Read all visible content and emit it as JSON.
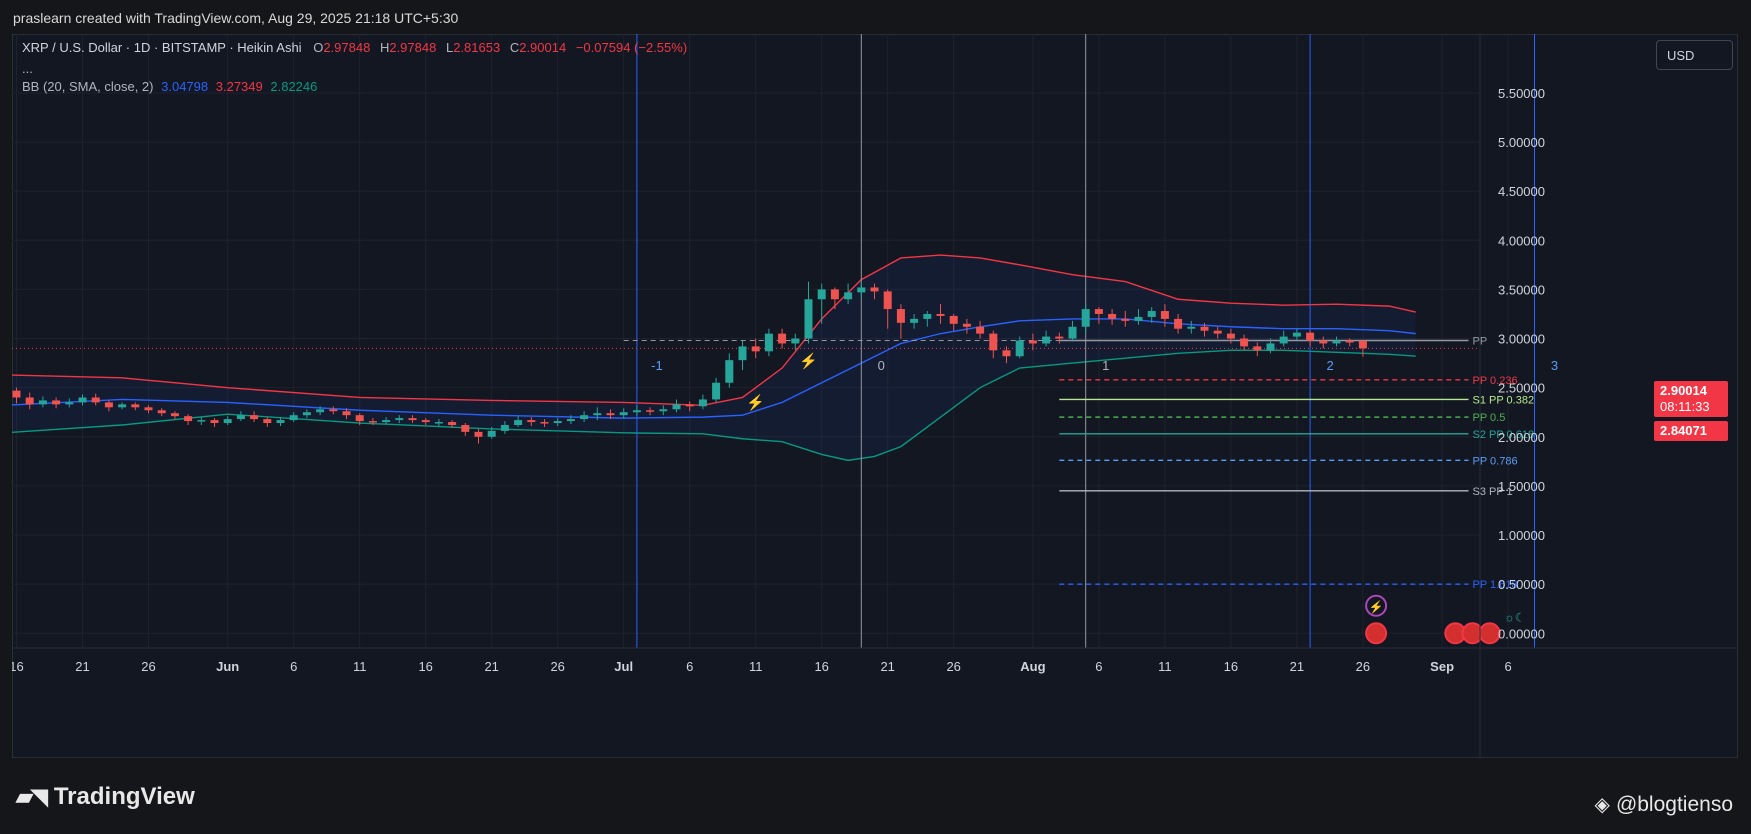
{
  "header": {
    "text": "praslearn created with TradingView.com, Aug 29, 2025 21:18 UTC+5:30"
  },
  "legend": {
    "symbol": "XRP / U.S. Dollar · 1D · BITSTAMP · Heikin Ashi",
    "open_label": "O",
    "open": "2.97848",
    "high_label": "H",
    "high": "2.97848",
    "low_label": "L",
    "low": "2.81653",
    "close_label": "C",
    "close": "2.90014",
    "change": "−0.07594 (−2.55%)",
    "more": "...",
    "bb_label": "BB (20, SMA, close, 2)",
    "bb_basis": "3.04798",
    "bb_upper": "3.27349",
    "bb_lower": "2.82246"
  },
  "currency_button": "USD",
  "price_tags": {
    "last_price": "2.90014",
    "countdown": "08:11:33",
    "second_price": "2.84071"
  },
  "colors": {
    "background": "#131722",
    "up": "#26a69a",
    "down": "#ef5350",
    "bb_basis": "#2962ff",
    "bb_upper": "#f23645",
    "bb_lower": "#089981"
  },
  "footer": {
    "logo_text": "TradingView",
    "watermark": "@blogtienso"
  },
  "chart_data": {
    "type": "candlestick",
    "title": "XRP / U.S. Dollar · 1D · BITSTAMP · Heikin Ashi",
    "ylim": [
      -0.15,
      6.1
    ],
    "y_ticks": [
      "0.00000",
      "0.50000",
      "1.00000",
      "1.50000",
      "2.00000",
      "2.50000",
      "3.00000",
      "3.50000",
      "4.00000",
      "4.50000",
      "5.00000",
      "5.50000"
    ],
    "y_tick_values": [
      0,
      0.5,
      1,
      1.5,
      2,
      2.5,
      3,
      3.5,
      4,
      4.5,
      5,
      5.5
    ],
    "x_ticks": [
      {
        "label": "16",
        "day": 0
      },
      {
        "label": "21",
        "day": 5
      },
      {
        "label": "26",
        "day": 10
      },
      {
        "label": "Jun",
        "day": 16,
        "bold": true
      },
      {
        "label": "6",
        "day": 21
      },
      {
        "label": "11",
        "day": 26
      },
      {
        "label": "16",
        "day": 31
      },
      {
        "label": "21",
        "day": 36
      },
      {
        "label": "26",
        "day": 41
      },
      {
        "label": "Jul",
        "day": 46,
        "bold": true
      },
      {
        "label": "6",
        "day": 51
      },
      {
        "label": "11",
        "day": 56
      },
      {
        "label": "16",
        "day": 61
      },
      {
        "label": "21",
        "day": 66
      },
      {
        "label": "26",
        "day": 71
      },
      {
        "label": "Aug",
        "day": 77,
        "bold": true
      },
      {
        "label": "6",
        "day": 82
      },
      {
        "label": "11",
        "day": 87
      },
      {
        "label": "16",
        "day": 92
      },
      {
        "label": "21",
        "day": 97
      },
      {
        "label": "26",
        "day": 102
      },
      {
        "label": "Sep",
        "day": 108,
        "bold": true
      },
      {
        "label": "6",
        "day": 113
      }
    ],
    "start_day": -1,
    "candles": [
      [
        2.57,
        2.47,
        2.62,
        2.42
      ],
      [
        2.47,
        2.4,
        2.5,
        2.34
      ],
      [
        2.4,
        2.33,
        2.45,
        2.28
      ],
      [
        2.33,
        2.37,
        2.41,
        2.3
      ],
      [
        2.37,
        2.33,
        2.4,
        2.29
      ],
      [
        2.33,
        2.35,
        2.39,
        2.3
      ],
      [
        2.35,
        2.4,
        2.43,
        2.32
      ],
      [
        2.4,
        2.35,
        2.44,
        2.32
      ],
      [
        2.35,
        2.3,
        2.37,
        2.26
      ],
      [
        2.3,
        2.33,
        2.35,
        2.28
      ],
      [
        2.33,
        2.3,
        2.35,
        2.27
      ],
      [
        2.3,
        2.27,
        2.32,
        2.24
      ],
      [
        2.27,
        2.24,
        2.29,
        2.21
      ],
      [
        2.24,
        2.21,
        2.26,
        2.18
      ],
      [
        2.21,
        2.16,
        2.23,
        2.12
      ],
      [
        2.16,
        2.17,
        2.2,
        2.12
      ],
      [
        2.17,
        2.14,
        2.19,
        2.1
      ],
      [
        2.14,
        2.18,
        2.21,
        2.12
      ],
      [
        2.18,
        2.22,
        2.26,
        2.16
      ],
      [
        2.22,
        2.18,
        2.26,
        2.15
      ],
      [
        2.18,
        2.14,
        2.2,
        2.1
      ],
      [
        2.14,
        2.17,
        2.2,
        2.11
      ],
      [
        2.17,
        2.22,
        2.25,
        2.15
      ],
      [
        2.22,
        2.25,
        2.28,
        2.19
      ],
      [
        2.25,
        2.28,
        2.31,
        2.22
      ],
      [
        2.28,
        2.26,
        2.31,
        2.23
      ],
      [
        2.26,
        2.22,
        2.29,
        2.18
      ],
      [
        2.22,
        2.16,
        2.24,
        2.12
      ],
      [
        2.16,
        2.15,
        2.19,
        2.12
      ],
      [
        2.15,
        2.17,
        2.2,
        2.13
      ],
      [
        2.17,
        2.19,
        2.22,
        2.14
      ],
      [
        2.19,
        2.17,
        2.22,
        2.14
      ],
      [
        2.17,
        2.15,
        2.19,
        2.12
      ],
      [
        2.15,
        2.15,
        2.18,
        2.11
      ],
      [
        2.15,
        2.12,
        2.17,
        2.09
      ],
      [
        2.12,
        2.05,
        2.14,
        2.01
      ],
      [
        2.05,
        2.0,
        2.08,
        1.93
      ],
      [
        2.0,
        2.06,
        2.1,
        1.98
      ],
      [
        2.06,
        2.12,
        2.16,
        2.03
      ],
      [
        2.12,
        2.17,
        2.21,
        2.1
      ],
      [
        2.17,
        2.15,
        2.2,
        2.11
      ],
      [
        2.15,
        2.14,
        2.18,
        2.1
      ],
      [
        2.14,
        2.16,
        2.19,
        2.11
      ],
      [
        2.16,
        2.18,
        2.22,
        2.13
      ],
      [
        2.18,
        2.22,
        2.26,
        2.15
      ],
      [
        2.22,
        2.24,
        2.3,
        2.17
      ],
      [
        2.24,
        2.22,
        2.28,
        2.18
      ],
      [
        2.22,
        2.25,
        2.29,
        2.19
      ],
      [
        2.25,
        2.27,
        2.32,
        2.21
      ],
      [
        2.27,
        2.26,
        2.3,
        2.22
      ],
      [
        2.26,
        2.28,
        2.32,
        2.22
      ],
      [
        2.28,
        2.33,
        2.38,
        2.25
      ],
      [
        2.33,
        2.31,
        2.36,
        2.26
      ],
      [
        2.31,
        2.38,
        2.43,
        2.28
      ],
      [
        2.38,
        2.55,
        2.6,
        2.35
      ],
      [
        2.55,
        2.78,
        2.85,
        2.5
      ],
      [
        2.78,
        2.92,
        2.98,
        2.68
      ],
      [
        2.92,
        2.87,
        3.0,
        2.8
      ],
      [
        2.87,
        3.05,
        3.1,
        2.82
      ],
      [
        3.05,
        2.95,
        3.1,
        2.9
      ],
      [
        2.95,
        3.0,
        3.05,
        2.88
      ],
      [
        3.0,
        3.4,
        3.58,
        2.95
      ],
      [
        3.4,
        3.5,
        3.56,
        3.15
      ],
      [
        3.5,
        3.4,
        3.52,
        3.3
      ],
      [
        3.4,
        3.47,
        3.56,
        3.35
      ],
      [
        3.47,
        3.52,
        3.58,
        3.42
      ],
      [
        3.52,
        3.48,
        3.56,
        3.4
      ],
      [
        3.48,
        3.3,
        3.5,
        3.1
      ],
      [
        3.3,
        3.16,
        3.35,
        3.0
      ],
      [
        3.16,
        3.2,
        3.25,
        3.1
      ],
      [
        3.2,
        3.25,
        3.28,
        3.12
      ],
      [
        3.25,
        3.23,
        3.35,
        3.15
      ],
      [
        3.23,
        3.15,
        3.25,
        3.08
      ],
      [
        3.15,
        3.12,
        3.2,
        3.05
      ],
      [
        3.12,
        3.05,
        3.18,
        3.0
      ],
      [
        3.05,
        2.88,
        3.08,
        2.8
      ],
      [
        2.88,
        2.82,
        2.92,
        2.75
      ],
      [
        2.82,
        2.98,
        3.02,
        2.8
      ],
      [
        2.98,
        2.95,
        3.05,
        2.88
      ],
      [
        2.95,
        3.02,
        3.08,
        2.92
      ],
      [
        3.02,
        3.0,
        3.06,
        2.95
      ],
      [
        3.0,
        3.12,
        3.18,
        2.97
      ],
      [
        3.12,
        3.3,
        3.35,
        3.05
      ],
      [
        3.3,
        3.25,
        3.32,
        3.15
      ],
      [
        3.25,
        3.2,
        3.3,
        3.14
      ],
      [
        3.2,
        3.18,
        3.28,
        3.12
      ],
      [
        3.18,
        3.22,
        3.3,
        3.14
      ],
      [
        3.22,
        3.28,
        3.32,
        3.16
      ],
      [
        3.28,
        3.2,
        3.35,
        3.12
      ],
      [
        3.2,
        3.1,
        3.25,
        3.05
      ],
      [
        3.1,
        3.12,
        3.18,
        3.05
      ],
      [
        3.12,
        3.08,
        3.16,
        3.02
      ],
      [
        3.08,
        3.05,
        3.12,
        3.0
      ],
      [
        3.05,
        3.0,
        3.1,
        2.95
      ],
      [
        3.0,
        2.92,
        3.04,
        2.88
      ],
      [
        2.92,
        2.88,
        2.96,
        2.82
      ],
      [
        2.88,
        2.95,
        3.0,
        2.85
      ],
      [
        2.95,
        3.02,
        3.08,
        2.92
      ],
      [
        3.02,
        3.06,
        3.1,
        2.98
      ],
      [
        3.06,
        2.98,
        3.08,
        2.92
      ],
      [
        2.98,
        2.95,
        3.02,
        2.9
      ],
      [
        2.95,
        2.98,
        3.02,
        2.92
      ],
      [
        2.98,
        2.96,
        3.0,
        2.92
      ],
      [
        2.97848,
        2.90014,
        2.97848,
        2.81653
      ]
    ],
    "bb_upper": [
      [
        -1,
        2.63
      ],
      [
        8,
        2.6
      ],
      [
        16,
        2.5
      ],
      [
        26,
        2.4
      ],
      [
        36,
        2.37
      ],
      [
        46,
        2.35
      ],
      [
        52,
        2.32
      ],
      [
        55,
        2.4
      ],
      [
        58,
        2.7
      ],
      [
        61,
        3.2
      ],
      [
        64,
        3.6
      ],
      [
        67,
        3.82
      ],
      [
        70,
        3.85
      ],
      [
        73,
        3.82
      ],
      [
        76,
        3.75
      ],
      [
        80,
        3.65
      ],
      [
        84,
        3.58
      ],
      [
        88,
        3.4
      ],
      [
        92,
        3.36
      ],
      [
        96,
        3.34
      ],
      [
        100,
        3.35
      ],
      [
        104,
        3.33
      ],
      [
        106,
        3.27
      ]
    ],
    "bb_basis": [
      [
        -1,
        2.32
      ],
      [
        8,
        2.38
      ],
      [
        16,
        2.35
      ],
      [
        26,
        2.27
      ],
      [
        36,
        2.22
      ],
      [
        46,
        2.19
      ],
      [
        52,
        2.2
      ],
      [
        55,
        2.22
      ],
      [
        58,
        2.35
      ],
      [
        61,
        2.55
      ],
      [
        64,
        2.75
      ],
      [
        67,
        2.95
      ],
      [
        70,
        3.05
      ],
      [
        73,
        3.12
      ],
      [
        76,
        3.18
      ],
      [
        80,
        3.2
      ],
      [
        84,
        3.2
      ],
      [
        88,
        3.15
      ],
      [
        92,
        3.12
      ],
      [
        96,
        3.1
      ],
      [
        100,
        3.1
      ],
      [
        104,
        3.08
      ],
      [
        106,
        3.05
      ]
    ],
    "bb_lower": [
      [
        -1,
        2.04
      ],
      [
        8,
        2.12
      ],
      [
        16,
        2.23
      ],
      [
        26,
        2.14
      ],
      [
        36,
        2.08
      ],
      [
        46,
        2.04
      ],
      [
        52,
        2.03
      ],
      [
        55,
        1.98
      ],
      [
        58,
        1.95
      ],
      [
        61,
        1.82
      ],
      [
        63,
        1.76
      ],
      [
        65,
        1.8
      ],
      [
        67,
        1.9
      ],
      [
        70,
        2.2
      ],
      [
        73,
        2.5
      ],
      [
        76,
        2.7
      ],
      [
        80,
        2.75
      ],
      [
        84,
        2.8
      ],
      [
        88,
        2.85
      ],
      [
        92,
        2.88
      ],
      [
        96,
        2.88
      ],
      [
        100,
        2.86
      ],
      [
        104,
        2.84
      ],
      [
        106,
        2.82
      ]
    ],
    "cycle_lines": [
      {
        "day": 47,
        "color": "#2962ff",
        "label": "-1"
      },
      {
        "day": 64,
        "color": "#9598a1",
        "label": "0"
      },
      {
        "day": 81,
        "color": "#9598a1",
        "label": "1"
      },
      {
        "day": 98,
        "color": "#2962ff",
        "label": "2"
      },
      {
        "day": 115,
        "color": "#2962ff",
        "label": "3"
      }
    ],
    "fib_start_day": 79,
    "fib_end_day": 110,
    "fib_levels": [
      {
        "label": "PP",
        "value": 2.98,
        "color": "#9598a1",
        "dash": false
      },
      {
        "label": "PP 0.236",
        "value": 2.58,
        "color": "#f23645",
        "dash": true
      },
      {
        "label": "S1 PP 0.382",
        "value": 2.38,
        "color": "#b5e88d",
        "dash": false
      },
      {
        "label": "PP 0.5",
        "value": 2.2,
        "color": "#4caf50",
        "dash": true
      },
      {
        "label": "S2 PP 0.618",
        "value": 2.03,
        "color": "#26a69a",
        "dash": false
      },
      {
        "label": "PP 0.786",
        "value": 1.76,
        "color": "#5b9cf6",
        "dash": true
      },
      {
        "label": "S3 PP 1",
        "value": 1.45,
        "color": "#b2b5be",
        "dash": false
      },
      {
        "label": "PP 1.618",
        "value": 0.5,
        "color": "#2962ff",
        "dash": true
      }
    ],
    "pp_dashed_from_day": 46,
    "last_price_value": 2.90014,
    "second_price_value": 2.84071
  }
}
